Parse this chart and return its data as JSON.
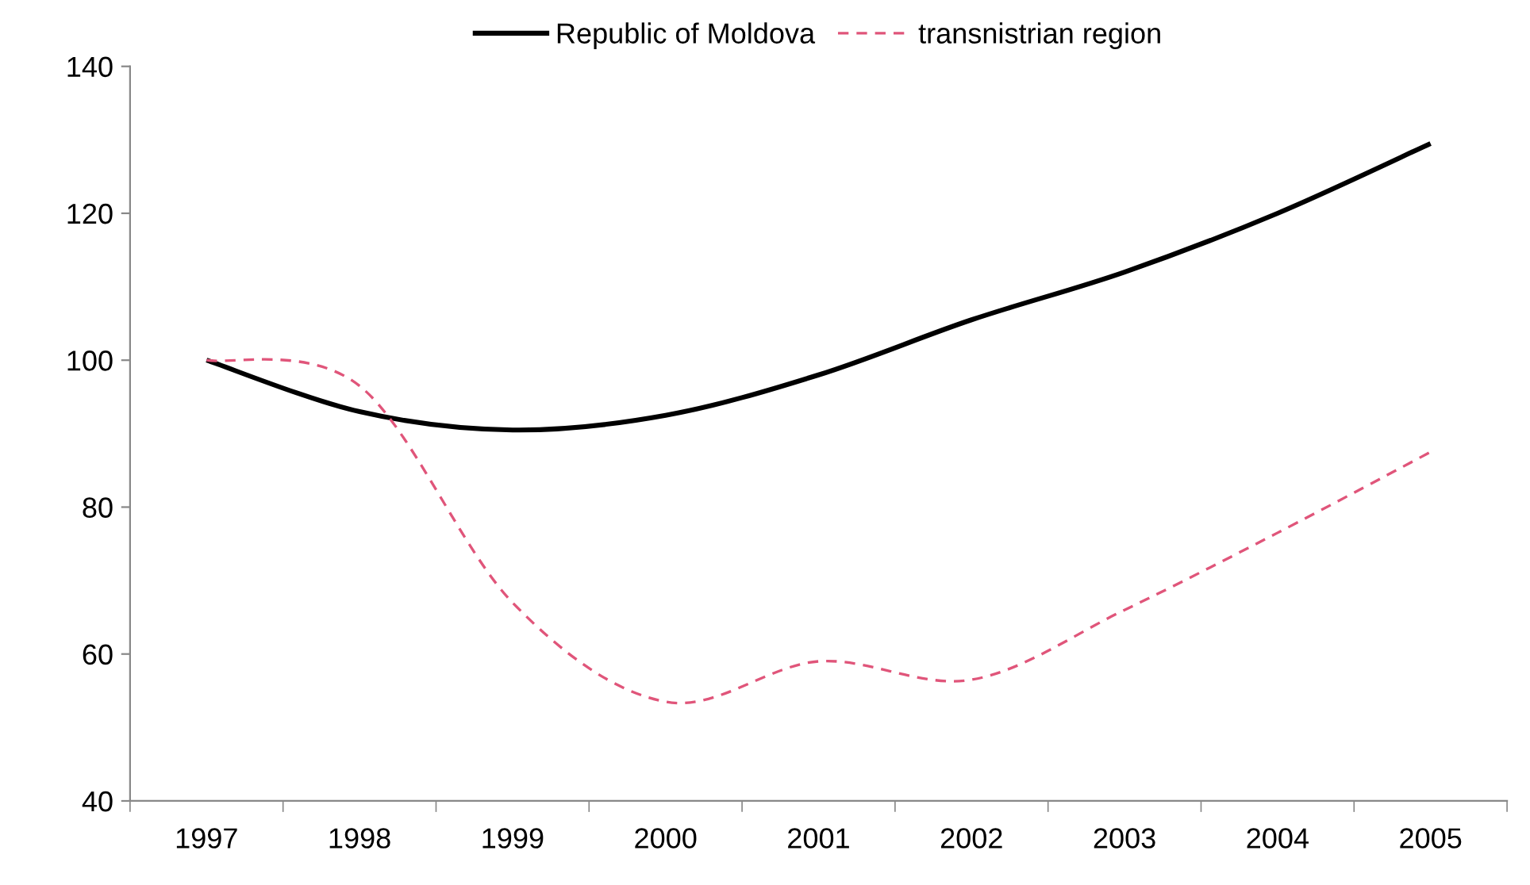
{
  "chart_data": {
    "type": "line",
    "categories": [
      "1997",
      "1998",
      "1999",
      "2000",
      "2001",
      "2002",
      "2003",
      "2004",
      "2005"
    ],
    "series": [
      {
        "name": "Republic of Moldova",
        "color": "#000000",
        "line_style": "solid",
        "values": [
          100,
          93,
          90.5,
          92.5,
          98,
          105.5,
          112,
          120,
          129.5
        ]
      },
      {
        "name": "transnistrian region",
        "color": "#e0557a",
        "line_style": "dashed",
        "values": [
          100,
          96.5,
          67,
          53.5,
          59,
          56.5,
          66,
          76.5,
          87.5
        ]
      }
    ],
    "ylim": [
      40,
      140
    ],
    "yticks": [
      40,
      60,
      80,
      100,
      120,
      140
    ],
    "grid": false,
    "legend": "top",
    "marker": "none"
  }
}
